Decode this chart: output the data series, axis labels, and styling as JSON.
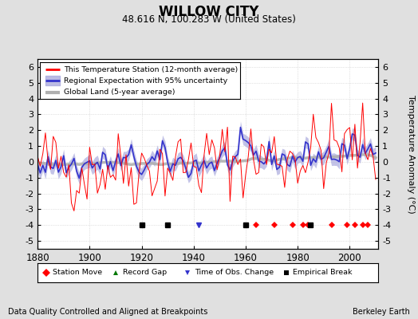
{
  "title": "WILLOW CITY",
  "subtitle": "48.616 N, 100.283 W (United States)",
  "ylabel": "Temperature Anomaly (°C)",
  "xlabel_left": "Data Quality Controlled and Aligned at Breakpoints",
  "xlabel_right": "Berkeley Earth",
  "xlim": [
    1880,
    2011
  ],
  "ylim": [
    -5.5,
    6.5
  ],
  "yticks": [
    -5,
    -4,
    -3,
    -2,
    -1,
    0,
    1,
    2,
    3,
    4,
    5,
    6
  ],
  "xticks": [
    1880,
    1900,
    1920,
    1940,
    1960,
    1980,
    2000
  ],
  "bg_color": "#e0e0e0",
  "plot_bg_color": "#ffffff",
  "grid_color": "#c8c8c8",
  "station_color": "#ff0000",
  "regional_color": "#3333cc",
  "regional_fill": "#aaaadd",
  "global_color": "#b0b0b0",
  "seed": 42,
  "n_years": 131,
  "start_year": 1880,
  "station_moves": [
    1964,
    1971,
    1978,
    1982,
    1984,
    1993,
    1999,
    2002,
    2005,
    2007
  ],
  "empirical_breaks": [
    1920,
    1930,
    1960,
    1985
  ],
  "obs_changes": [
    1942
  ],
  "record_gaps": []
}
